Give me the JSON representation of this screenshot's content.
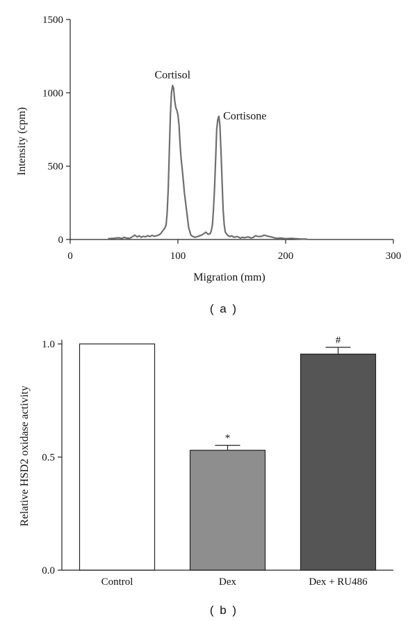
{
  "figure": {
    "panel_a_label": "( a )",
    "panel_b_label": "( b )"
  },
  "chart_data": [
    {
      "type": "line",
      "xlabel": "Migration (mm)",
      "ylabel": "Intensity (cpm)",
      "xlim": [
        0,
        300
      ],
      "ylim": [
        0,
        1500
      ],
      "xticks": [
        "0",
        "100",
        "200",
        "300"
      ],
      "yticks": [
        "0",
        "500",
        "1000",
        "1500"
      ],
      "grid": false,
      "annotations": [
        {
          "text": "Cortisol",
          "x": 95,
          "y": 1100
        },
        {
          "text": "Cortisone",
          "x": 142,
          "y": 820
        }
      ],
      "series": [
        {
          "color": "#6e6e6e",
          "x": [
            35,
            40,
            45,
            48,
            50,
            52,
            55,
            58,
            60,
            62,
            64,
            66,
            68,
            70,
            72,
            74,
            76,
            78,
            80,
            82,
            84,
            86,
            88,
            89,
            90,
            91,
            92,
            93,
            94,
            95,
            96,
            97,
            98,
            99,
            100,
            101,
            102,
            103,
            104,
            105,
            106,
            108,
            110,
            112,
            114,
            116,
            118,
            120,
            122,
            124,
            126,
            128,
            130,
            131,
            132,
            133,
            134,
            135,
            136,
            137,
            138,
            139,
            140,
            141,
            142,
            143,
            144,
            146,
            148,
            150,
            152,
            155,
            158,
            160,
            162,
            165,
            168,
            170,
            172,
            175,
            178,
            180,
            182,
            185,
            188,
            190,
            192,
            195,
            200,
            205,
            210,
            215,
            220
          ],
          "y": [
            5,
            8,
            12,
            6,
            15,
            10,
            8,
            20,
            30,
            18,
            25,
            15,
            22,
            18,
            26,
            20,
            28,
            22,
            25,
            30,
            40,
            60,
            80,
            100,
            180,
            350,
            600,
            850,
            1000,
            1050,
            1030,
            950,
            900,
            880,
            850,
            780,
            650,
            550,
            480,
            400,
            320,
            200,
            80,
            30,
            20,
            15,
            20,
            25,
            30,
            40,
            50,
            35,
            40,
            60,
            100,
            200,
            350,
            550,
            750,
            820,
            840,
            780,
            600,
            400,
            200,
            100,
            50,
            30,
            20,
            25,
            15,
            20,
            10,
            15,
            12,
            18,
            10,
            15,
            25,
            20,
            22,
            30,
            25,
            20,
            15,
            10,
            8,
            10,
            5,
            8,
            5,
            3,
            3
          ]
        }
      ]
    },
    {
      "type": "bar",
      "categories": [
        "Control",
        "Dex",
        "Dex + RU486"
      ],
      "values": [
        1.0,
        0.53,
        0.955
      ],
      "errors": [
        0,
        0.022,
        0.03
      ],
      "significance": [
        "",
        "*",
        "#"
      ],
      "colors": [
        "#ffffff",
        "#8e8e8e",
        "#555555"
      ],
      "ylabel": "Relative HSD2 oxidase activity",
      "ylim": [
        0,
        1.0
      ],
      "yticks": [
        "0.0",
        "0.5",
        "1.0"
      ],
      "grid": false
    }
  ]
}
